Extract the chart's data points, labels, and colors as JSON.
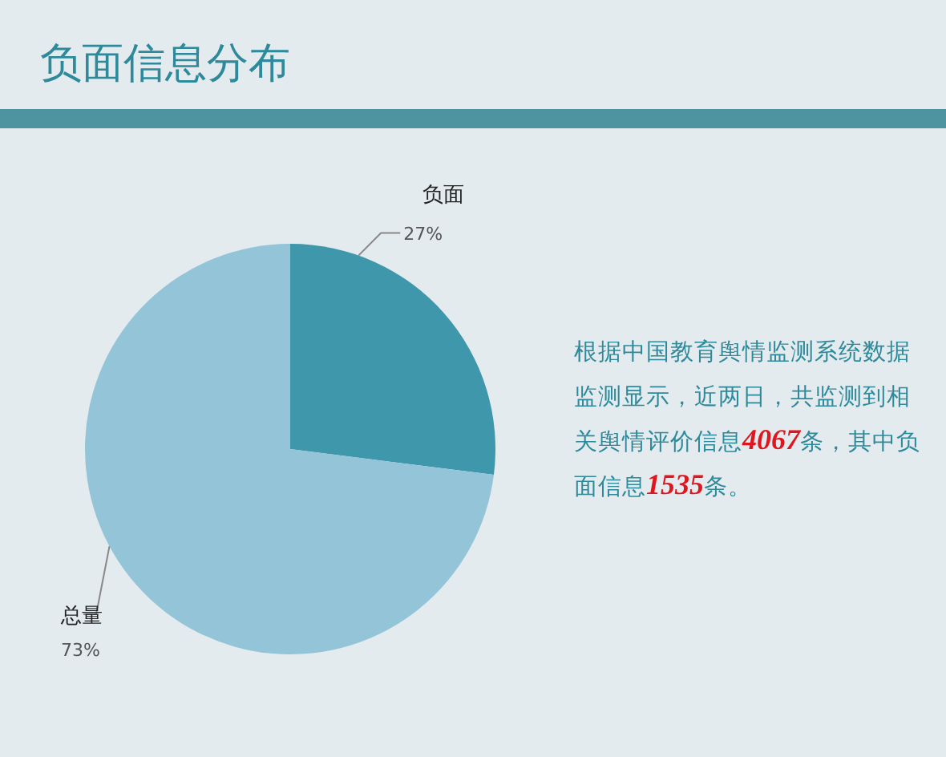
{
  "chart_data": {
    "type": "pie",
    "title": "负面信息分布",
    "categories": [
      "负面",
      "总量"
    ],
    "values": [
      27,
      73
    ],
    "value_labels": [
      "27%",
      "73%"
    ],
    "colors": [
      "#3f97ac",
      "#93c4d8"
    ],
    "annotations": [
      "根据中国教育舆情监测系统数据监测显示，近两日，共监测到相关舆情评价信息4067条，其中负面信息1535条。"
    ]
  }
}
